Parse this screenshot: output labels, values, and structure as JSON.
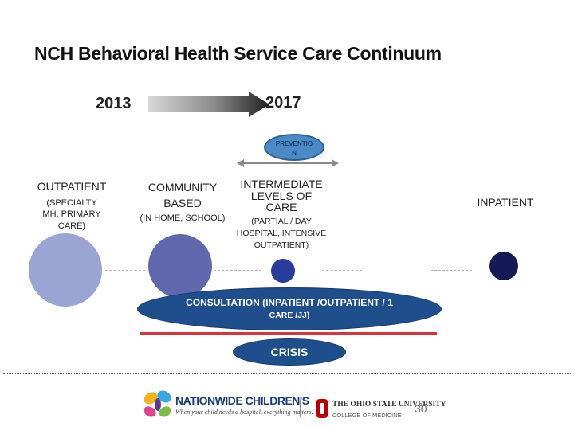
{
  "title": "NCH Behavioral Health Service Care Continuum",
  "timeline": {
    "start_year": "2013",
    "end_year": "2017"
  },
  "prevention": {
    "line1": "PREVENTIO",
    "line2": "N"
  },
  "columns": {
    "outpatient": {
      "title": "OUTPATIENT",
      "sub1": "(SPECIALTY",
      "sub2": "MH, PRIMARY",
      "sub3": "CARE)"
    },
    "community": {
      "line1": "COMMUNITY",
      "line2": "BASED",
      "sub": "(IN HOME, SCHOOL)"
    },
    "intermediate": {
      "line1": "INTERMEDIATE",
      "line2": "LEVELS OF",
      "line3": "CARE",
      "sub1": "(PARTIAL / DAY",
      "sub2": "HOSPITAL, INTENSIVE",
      "sub3": "OUTPATIENT)"
    },
    "inpatient": {
      "title": "INPATIENT"
    }
  },
  "consultation": {
    "line1": "CONSULTATION (INPATIENT /OUTPATIENT / 1",
    "line2": "CARE /JJ)"
  },
  "crisis": {
    "label": "CRISIS"
  },
  "footer": {
    "nationwide_name": "NATIONWIDE CHILDREN'S",
    "nationwide_tagline": "When your child needs a hospital, everything matters.",
    "osu_name": "THE OHIO STATE UNIVERSITY",
    "osu_college": "COLLEGE OF MEDICINE",
    "page_number": "30"
  },
  "colors": {
    "outpatient_circle": "#9aa5d3",
    "community_circle": "#5f68ad",
    "intermediate_circle": "#2a3b9e",
    "inpatient_circle": "#141a55",
    "oval_blue": "#1f4e8c",
    "red_line": "#d9343e",
    "prevention_fill": "#4a8bc7",
    "osu_red": "#bb0000"
  }
}
